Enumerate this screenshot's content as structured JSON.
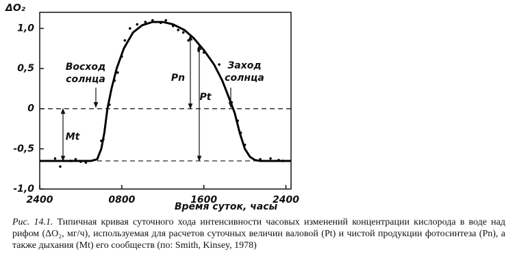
{
  "chart_data": {
    "type": "line",
    "ylabel": "ΔO₂",
    "xlabel": "Время суток, часы",
    "xlim": [
      0,
      24.5
    ],
    "ylim": [
      -1.0,
      1.2
    ],
    "xticks": [
      {
        "value": 0,
        "label": "2400"
      },
      {
        "value": 8,
        "label": "0800"
      },
      {
        "value": 16,
        "label": "1600"
      },
      {
        "value": 24,
        "label": "2400"
      }
    ],
    "yticks": [
      {
        "value": 1.0,
        "label": "1,0"
      },
      {
        "value": 0.5,
        "label": "0,5"
      },
      0,
      {
        "value": -0.5,
        "label": "-0,5"
      },
      {
        "value": -1.0,
        "label": "-1,0"
      }
    ],
    "hlines": [
      0,
      -0.65
    ],
    "annotations": {
      "sunrise": "Восход солнца",
      "sunset": "Заход солнца",
      "pn": "Pn",
      "pt": "Pt",
      "mt": "Mt"
    },
    "series": [
      {
        "type": "line",
        "color": "#000000",
        "x": [
          0,
          5,
          5.6,
          6.0,
          6.3,
          6.6,
          7.0,
          7.5,
          8.2,
          9.1,
          10,
          11,
          12,
          13,
          14.1,
          15,
          16,
          17,
          17.8,
          18.5,
          19,
          19.5,
          20,
          20.5,
          21,
          21.5,
          24.5
        ],
        "values": [
          -0.65,
          -0.65,
          -0.63,
          -0.5,
          -0.3,
          0,
          0.25,
          0.5,
          0.75,
          0.95,
          1.04,
          1.08,
          1.08,
          1.05,
          0.98,
          0.88,
          0.73,
          0.55,
          0.35,
          0.12,
          -0.05,
          -0.3,
          -0.5,
          -0.6,
          -0.64,
          -0.65,
          -0.65
        ]
      },
      {
        "type": "scatter",
        "color": "#000000",
        "x": [
          1.5,
          2,
          3,
          3.5,
          4,
          4.5,
          6,
          6.2,
          6.8,
          7.3,
          7.6,
          8,
          8.3,
          8.8,
          9.5,
          10.3,
          11,
          11.8,
          12.3,
          13,
          13.5,
          14,
          14.5,
          15.5,
          16,
          17.5,
          18.7,
          19.3,
          19.6,
          20,
          21.5,
          22.5,
          23.3,
          23.7
        ],
        "values": [
          -0.62,
          -0.72,
          -0.65,
          -0.63,
          -0.66,
          -0.67,
          -0.4,
          -0.38,
          0.05,
          0.35,
          0.45,
          0.65,
          0.85,
          1.0,
          1.05,
          1.08,
          1.1,
          1.07,
          1.1,
          1.03,
          0.98,
          0.95,
          0.85,
          0.72,
          0.7,
          0.55,
          0.08,
          -0.15,
          -0.3,
          -0.45,
          -0.63,
          -0.62,
          -0.64,
          -0.65
        ]
      }
    ]
  },
  "caption": {
    "label": "Рис. 14.1.",
    "text": "Типичная кривая суточного хода интенсивности часовых изменений концентрации кислорода в воде над рифом (ΔO₂, мг/ч), используемая для расчетов суточных величин валовой (Pt) и чистой продукции фотосинтеза (Pn), а также дыхания (Mt) его сообществ (по: Smith, Kinsey, 1978)"
  }
}
